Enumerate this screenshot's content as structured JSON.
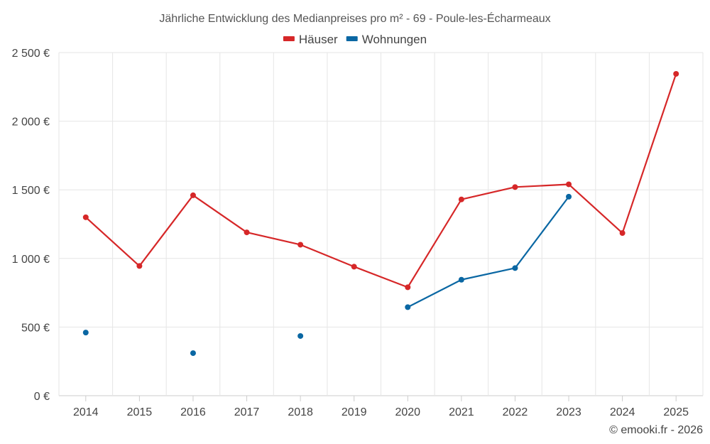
{
  "chart_data": {
    "type": "line",
    "title": "Jährliche Entwicklung des Medianpreises pro m² - 69 - Poule-les-Écharmeaux",
    "categories": [
      "2014",
      "2015",
      "2016",
      "2017",
      "2018",
      "2019",
      "2020",
      "2021",
      "2022",
      "2023",
      "2024",
      "2025"
    ],
    "ylim": [
      0,
      2500
    ],
    "yticks": [
      0,
      500,
      1000,
      1500,
      2000,
      2500
    ],
    "ytick_labels": [
      "0 €",
      "500 €",
      "1 000 €",
      "1 500 €",
      "2 000 €",
      "2 500 €"
    ],
    "series": [
      {
        "name": "Häuser",
        "color": "#d62728",
        "values": [
          1300,
          945,
          1460,
          1190,
          1100,
          940,
          790,
          1430,
          1520,
          1540,
          1185,
          2345
        ]
      },
      {
        "name": "Wohnungen",
        "color": "#0a67a3",
        "values": [
          460,
          null,
          310,
          null,
          435,
          null,
          645,
          845,
          930,
          1450,
          null,
          null
        ]
      }
    ],
    "legend": "top-center",
    "grid": true,
    "credit": "© emooki.fr - 2026"
  }
}
